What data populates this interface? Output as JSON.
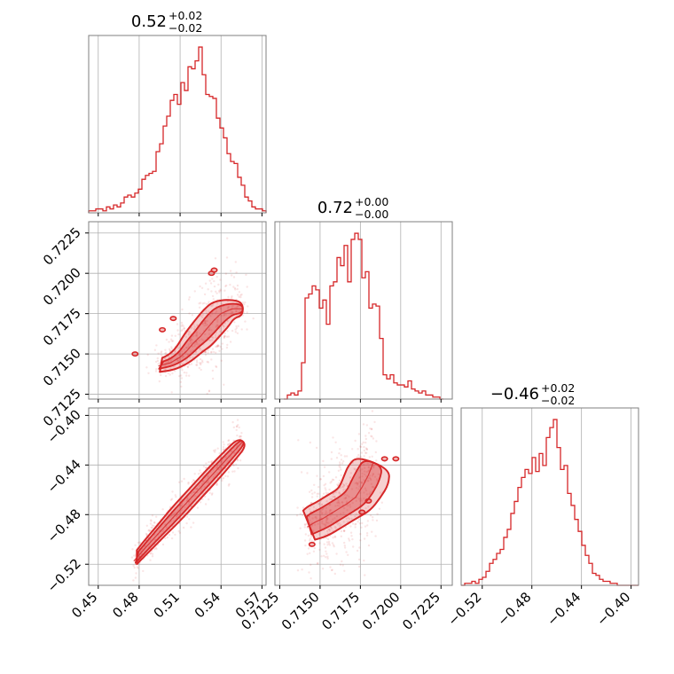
{
  "chart_data": {
    "type": "corner",
    "color": "#d62728",
    "grid": true,
    "parameters": [
      {
        "median": 0.52,
        "err_plus": "0.02",
        "err_minus": "0.02",
        "title_main": "0.52",
        "title_sup": "+0.02",
        "title_sub": "−0.02",
        "range": [
          0.443,
          0.573
        ],
        "ticks": [
          0.45,
          0.48,
          0.51,
          0.54,
          0.57
        ],
        "tick_labels": [
          "0.45",
          "0.48",
          "0.51",
          "0.54",
          "0.57"
        ],
        "hist_bin_width": 0.0026,
        "hist_counts": [
          1,
          1,
          2,
          2,
          1,
          3,
          2,
          4,
          3,
          5,
          8,
          9,
          8,
          10,
          12,
          17,
          19,
          20,
          21,
          31,
          35,
          44,
          49,
          57,
          60,
          55,
          66,
          62,
          74,
          73,
          77,
          84,
          70,
          60,
          59,
          58,
          48,
          43,
          38,
          30,
          26,
          25,
          18,
          14,
          8,
          6,
          3,
          2,
          2,
          1
        ]
      },
      {
        "median": 0.72,
        "err_plus": "0.00",
        "err_minus": "0.00",
        "title_main": "0.72",
        "title_sup": "+0.00",
        "title_sub": "−0.00",
        "range": [
          0.7122,
          0.7232
        ],
        "ticks": [
          0.7125,
          0.715,
          0.7175,
          0.72,
          0.7225
        ],
        "tick_labels": [
          "0.7125",
          "0.7150",
          "0.7175",
          "0.7200",
          "0.7225"
        ],
        "hist_bin_width": 0.00022,
        "hist_counts": [
          0,
          2,
          3,
          2,
          4,
          18,
          50,
          52,
          56,
          54,
          45,
          49,
          37,
          56,
          58,
          70,
          66,
          76,
          58,
          79,
          82,
          79,
          60,
          63,
          45,
          47,
          46,
          30,
          12,
          10,
          12,
          8,
          7,
          7,
          6,
          9,
          5,
          4,
          3,
          4,
          2,
          2,
          1,
          1,
          0
        ]
      },
      {
        "median": -0.46,
        "err_plus": "0.02",
        "err_minus": "0.02",
        "title_main": "−0.46",
        "title_sup": "+0.02",
        "title_sub": "−0.02",
        "range": [
          -0.537,
          -0.394
        ],
        "ticks": [
          -0.52,
          -0.48,
          -0.44,
          -0.4
        ],
        "tick_labels": [
          "−0.52",
          "−0.48",
          "−0.44",
          "−0.40"
        ],
        "hist_bin_width": 0.00286,
        "hist_counts": [
          0,
          1,
          1,
          2,
          1,
          3,
          4,
          7,
          11,
          13,
          16,
          18,
          24,
          28,
          36,
          42,
          49,
          54,
          58,
          56,
          64,
          57,
          66,
          60,
          74,
          79,
          83,
          69,
          58,
          60,
          46,
          40,
          33,
          27,
          20,
          15,
          11,
          6,
          5,
          3,
          2,
          2,
          1,
          1,
          0,
          0,
          0,
          0,
          0,
          0
        ]
      }
    ],
    "pairs": [
      {
        "row": 1,
        "col": 0,
        "relation": "banded",
        "points": [
          [
            0.494,
            0.71425
          ],
          [
            0.503,
            0.71445
          ],
          [
            0.51,
            0.7148
          ],
          [
            0.515,
            0.7152
          ],
          [
            0.52,
            0.7157
          ],
          [
            0.525,
            0.7161
          ],
          [
            0.53,
            0.7166
          ],
          [
            0.535,
            0.7171
          ],
          [
            0.54,
            0.7175
          ],
          [
            0.548,
            0.7178
          ],
          [
            0.556,
            0.7178
          ]
        ],
        "width_inner": [
          0.00018,
          0.00022,
          0.00028,
          0.00035,
          0.0004,
          0.00045,
          0.0005,
          0.00052,
          0.0005,
          0.00035,
          0.00025
        ],
        "width_outer": [
          0.00038,
          0.00048,
          0.00058,
          0.00068,
          0.00078,
          0.00088,
          0.0009,
          0.00092,
          0.0009,
          0.0006,
          0.0004
        ],
        "islands": [
          [
            0.535,
            0.7202
          ],
          [
            0.533,
            0.72
          ],
          [
            0.505,
            0.7172
          ],
          [
            0.497,
            0.7165
          ],
          [
            0.477,
            0.715
          ]
        ]
      },
      {
        "row": 2,
        "col": 0,
        "relation": "linear",
        "points": [
          [
            0.476,
            -0.5175
          ],
          [
            0.486,
            -0.505
          ],
          [
            0.496,
            -0.493
          ],
          [
            0.506,
            -0.481
          ],
          [
            0.516,
            -0.469
          ],
          [
            0.526,
            -0.457
          ],
          [
            0.536,
            -0.445
          ],
          [
            0.546,
            -0.433
          ],
          [
            0.556,
            -0.421
          ]
        ],
        "width_inner": [
          0.002,
          0.0025,
          0.003,
          0.0035,
          0.0035,
          0.0035,
          0.0035,
          0.003,
          0.0025
        ],
        "width_outer": [
          0.0035,
          0.0045,
          0.005,
          0.006,
          0.006,
          0.006,
          0.006,
          0.0055,
          0.0045
        ],
        "islands": []
      },
      {
        "row": 2,
        "col": 1,
        "relation": "banded",
        "points": [
          [
            0.7142,
            -0.49
          ],
          [
            0.7147,
            -0.486
          ],
          [
            0.7152,
            -0.483
          ],
          [
            0.7157,
            -0.479
          ],
          [
            0.7162,
            -0.475
          ],
          [
            0.7167,
            -0.471
          ],
          [
            0.7172,
            -0.466
          ],
          [
            0.7176,
            -0.458
          ],
          [
            0.718,
            -0.448
          ],
          [
            0.7183,
            -0.438
          ]
        ],
        "width_inner": [
          0.007,
          0.008,
          0.008,
          0.008,
          0.008,
          0.008,
          0.009,
          0.01,
          0.01,
          0.008
        ],
        "width_outer": [
          0.012,
          0.014,
          0.014,
          0.014,
          0.014,
          0.014,
          0.016,
          0.017,
          0.018,
          0.014
        ],
        "islands": [
          [
            0.719,
            -0.435
          ],
          [
            0.7197,
            -0.435
          ],
          [
            0.718,
            -0.469
          ],
          [
            0.7176,
            -0.478
          ],
          [
            0.7145,
            -0.504
          ]
        ]
      }
    ]
  }
}
